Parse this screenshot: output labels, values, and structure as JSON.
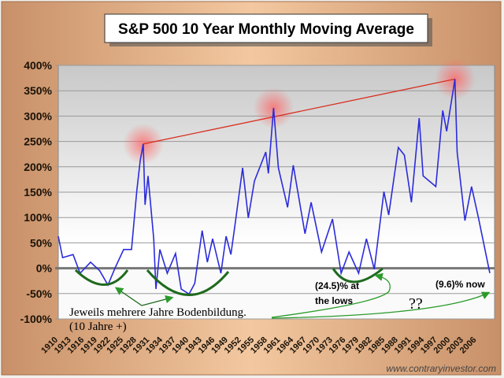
{
  "chart_data": {
    "type": "line",
    "title": "S&P 500 10 Year Monthly Moving Average",
    "xlabel": "",
    "ylabel": "",
    "ylim": [
      -100,
      400
    ],
    "xlim": [
      1910,
      2009
    ],
    "grid": true,
    "y_ticks": [
      "400%",
      "350%",
      "300%",
      "250%",
      "200%",
      "150%",
      "100%",
      "50%",
      "0%",
      "-50%",
      "-100%"
    ],
    "y_tick_values": [
      400,
      350,
      300,
      250,
      200,
      150,
      100,
      50,
      0,
      -50,
      -100
    ],
    "x_ticks": [
      "1910",
      "1913",
      "1916",
      "1919",
      "1922",
      "1925",
      "1928",
      "1931",
      "1934",
      "1937",
      "1940",
      "1943",
      "1946",
      "1949",
      "1952",
      "1955",
      "1958",
      "1961",
      "1964",
      "1967",
      "1970",
      "1973",
      "1976",
      "1979",
      "1982",
      "1985",
      "1988",
      "1991",
      "1994",
      "1997",
      "2000",
      "2003",
      "2006"
    ],
    "series": [
      {
        "color": "#2b2bdc",
        "points": [
          [
            1910,
            63
          ],
          [
            1911,
            21
          ],
          [
            1913.4,
            27
          ],
          [
            1915,
            -10
          ],
          [
            1917.4,
            12
          ],
          [
            1919.5,
            -5
          ],
          [
            1921.4,
            -33
          ],
          [
            1923,
            0
          ],
          [
            1925,
            37
          ],
          [
            1926.8,
            37
          ],
          [
            1928,
            151
          ],
          [
            1928.8,
            213
          ],
          [
            1929.5,
            245
          ],
          [
            1929.9,
            125
          ],
          [
            1930.6,
            182
          ],
          [
            1931.9,
            58
          ],
          [
            1932.4,
            -41
          ],
          [
            1933.3,
            37
          ],
          [
            1935,
            -10
          ],
          [
            1936.9,
            29
          ],
          [
            1938.2,
            -41
          ],
          [
            1940,
            -51
          ],
          [
            1941.3,
            -30
          ],
          [
            1943,
            74
          ],
          [
            1944.2,
            12
          ],
          [
            1945.4,
            58
          ],
          [
            1947.3,
            -10
          ],
          [
            1948.5,
            63
          ],
          [
            1949.6,
            27
          ],
          [
            1950.5,
            83
          ],
          [
            1952.3,
            198
          ],
          [
            1953.6,
            99
          ],
          [
            1955,
            172
          ],
          [
            1957.6,
            229
          ],
          [
            1958.2,
            187
          ],
          [
            1959.4,
            316
          ],
          [
            1960.5,
            198
          ],
          [
            1962.6,
            120
          ],
          [
            1963.9,
            203
          ],
          [
            1966.6,
            68
          ],
          [
            1968,
            130
          ],
          [
            1970.4,
            32
          ],
          [
            1972.9,
            97
          ],
          [
            1974.9,
            -10
          ],
          [
            1976.7,
            32
          ],
          [
            1978.9,
            -10
          ],
          [
            1980.7,
            58
          ],
          [
            1982.5,
            -2
          ],
          [
            1984.7,
            151
          ],
          [
            1985.8,
            105
          ],
          [
            1988,
            238
          ],
          [
            1989.4,
            223
          ],
          [
            1991,
            130
          ],
          [
            1992.8,
            296
          ],
          [
            1993.7,
            182
          ],
          [
            1996.6,
            161
          ],
          [
            1998.2,
            311
          ],
          [
            1999.1,
            270
          ],
          [
            2001,
            373
          ],
          [
            2001.5,
            229
          ],
          [
            2003.3,
            94
          ],
          [
            2004.8,
            161
          ],
          [
            2006.4,
            99
          ],
          [
            2009,
            -9.6
          ]
        ]
      }
    ],
    "trend_line": {
      "color": "#d83020",
      "from": [
        1929.5,
        245
      ],
      "to": [
        2001,
        373
      ]
    },
    "annotations": {
      "bottoms_text": "Jeweils mehrere Jahre Bodenbildung.",
      "bottoms_sub": "(10 Jahre +)",
      "lows_line1": "(24.5)% at",
      "lows_line2": "the lows",
      "now": "(9.6)% now",
      "question": "??"
    },
    "source": "www.contraryinvestor.com"
  }
}
